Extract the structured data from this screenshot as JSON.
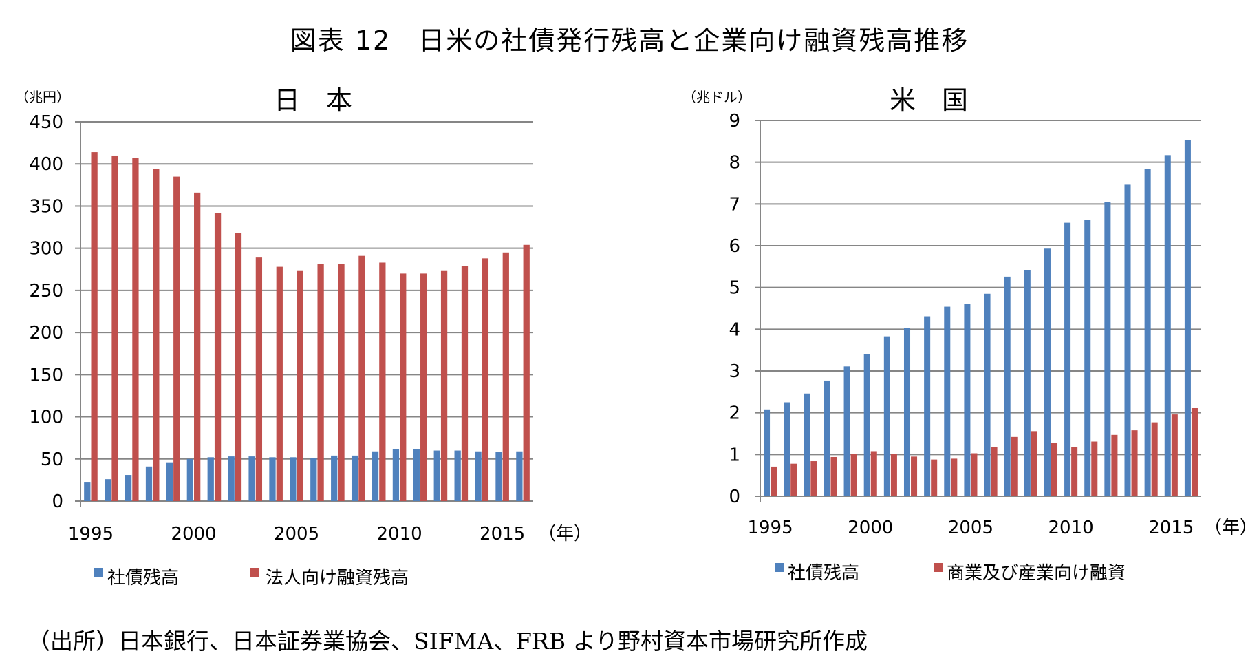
{
  "figure_title": "図表 12　日米の社債発行残高と企業向け融資残高推移",
  "source_note": "（出所）日本銀行、日本証券業協会、SIFMA、FRB より野村資本市場研究所作成",
  "colors": {
    "blue": "#4f81bd",
    "red": "#c0504d",
    "grid": "#868686",
    "axis": "#868686"
  },
  "chart_data": [
    {
      "type": "bar",
      "title": "日　本",
      "unit_label": "（兆円）",
      "year_suffix": "（年）",
      "ylim": [
        0,
        450
      ],
      "yticks": [
        0,
        50,
        100,
        150,
        200,
        250,
        300,
        350,
        400,
        450
      ],
      "xticks": [
        "1995",
        "2000",
        "2005",
        "2010",
        "2015"
      ],
      "categories": [
        1995,
        1996,
        1997,
        1998,
        1999,
        2000,
        2001,
        2002,
        2003,
        2004,
        2005,
        2006,
        2007,
        2008,
        2009,
        2010,
        2011,
        2012,
        2013,
        2014,
        2015,
        2016
      ],
      "series": [
        {
          "name": "社債残高",
          "color": "#4f81bd",
          "values": [
            22,
            26,
            31,
            41,
            46,
            50,
            52,
            53,
            53,
            52,
            52,
            51,
            54,
            54,
            59,
            62,
            62,
            60,
            60,
            59,
            58,
            59
          ]
        },
        {
          "name": "法人向け融資残高",
          "color": "#c0504d",
          "values": [
            414,
            410,
            407,
            394,
            385,
            366,
            342,
            318,
            289,
            278,
            273,
            281,
            281,
            291,
            283,
            270,
            270,
            273,
            279,
            288,
            295,
            304
          ]
        }
      ]
    },
    {
      "type": "bar",
      "title": "米　国",
      "unit_label": "（兆ドル）",
      "year_suffix": "（年）",
      "ylim": [
        0,
        9
      ],
      "yticks": [
        0,
        1,
        2,
        3,
        4,
        5,
        6,
        7,
        8,
        9
      ],
      "xticks": [
        "1995",
        "2000",
        "2005",
        "2010",
        "2015"
      ],
      "categories": [
        1995,
        1996,
        1997,
        1998,
        1999,
        2000,
        2001,
        2002,
        2003,
        2004,
        2005,
        2006,
        2007,
        2008,
        2009,
        2010,
        2011,
        2012,
        2013,
        2014,
        2015,
        2016
      ],
      "series": [
        {
          "name": "社債残高",
          "color": "#4f81bd",
          "values": [
            2.08,
            2.25,
            2.46,
            2.77,
            3.11,
            3.4,
            3.83,
            4.03,
            4.31,
            4.54,
            4.61,
            4.85,
            5.26,
            5.42,
            5.93,
            6.55,
            6.62,
            7.05,
            7.46,
            7.83,
            8.17,
            8.53
          ]
        },
        {
          "name": "商業及び産業向け融資",
          "color": "#c0504d",
          "values": [
            0.71,
            0.78,
            0.84,
            0.94,
            1.01,
            1.08,
            1.02,
            0.95,
            0.88,
            0.9,
            1.03,
            1.18,
            1.42,
            1.56,
            1.27,
            1.18,
            1.31,
            1.47,
            1.58,
            1.77,
            1.96,
            2.11
          ]
        }
      ]
    }
  ]
}
